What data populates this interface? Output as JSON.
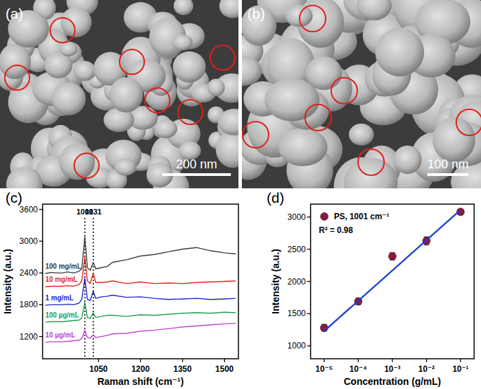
{
  "images": [
    {
      "label": "(a)",
      "scale_bar": "200 nm"
    },
    {
      "label": "(b)",
      "scale_bar": "100 nm"
    }
  ],
  "chart_data": [
    {
      "type": "line",
      "title": "(c)",
      "x_label": "Raman shift (cm⁻¹)",
      "y_label": "Intensity (a.u.)",
      "x": [
        860,
        880,
        900,
        920,
        940,
        960,
        980,
        990,
        1001,
        1010,
        1020,
        1031,
        1040,
        1060,
        1080,
        1100,
        1150,
        1200,
        1250,
        1300,
        1350,
        1400,
        1450,
        1500,
        1540
      ],
      "xlim": [
        850,
        1550
      ],
      "xticks": [
        1050,
        1200,
        1350,
        1500
      ],
      "ylim": [
        780,
        3700
      ],
      "yticks": [
        1200,
        1800,
        2400,
        3000,
        3600
      ],
      "series": [
        {
          "name": "100 mg/mL",
          "color": "#3a3a3a",
          "values": [
            2390,
            2410,
            2400,
            2400,
            2420,
            2400,
            2430,
            2480,
            3080,
            2500,
            2450,
            2600,
            2480,
            2500,
            2520,
            2600,
            2650,
            2720,
            2750,
            2800,
            2850,
            2880,
            2820,
            2780,
            2760
          ]
        },
        {
          "name": "10 mg/mL",
          "color": "#e8231c",
          "values": [
            2140,
            2150,
            2150,
            2150,
            2160,
            2150,
            2180,
            2250,
            2700,
            2250,
            2200,
            2400,
            2220,
            2220,
            2230,
            2250,
            2200,
            2230,
            2200,
            2210,
            2200,
            2220,
            2230,
            2240,
            2250
          ]
        },
        {
          "name": "1 mg/mL",
          "color": "#2020d8",
          "values": [
            1790,
            1800,
            1800,
            1800,
            1810,
            1800,
            1830,
            1900,
            2300,
            1900,
            1880,
            2050,
            1920,
            1950,
            1960,
            1980,
            1940,
            1950,
            1920,
            1900,
            1910,
            1920,
            1900,
            1910,
            1920
          ]
        },
        {
          "name": "100 µg/mL",
          "color": "#1f9e4a",
          "values": [
            1470,
            1480,
            1480,
            1480,
            1490,
            1500,
            1510,
            1550,
            1850,
            1560,
            1540,
            1650,
            1560,
            1580,
            1600,
            1600,
            1580,
            1610,
            1600,
            1620,
            1640,
            1650,
            1640,
            1660,
            1650
          ]
        },
        {
          "name": "10 µg/mL",
          "color": "#c040d0",
          "values": [
            1090,
            1100,
            1100,
            1100,
            1110,
            1120,
            1130,
            1160,
            1320,
            1180,
            1170,
            1230,
            1180,
            1200,
            1220,
            1250,
            1260,
            1300,
            1320,
            1350,
            1380,
            1400,
            1420,
            1440,
            1450
          ]
        }
      ],
      "annotations": [
        {
          "text": "1001",
          "x": 1001
        },
        {
          "text": "1031",
          "x": 1031
        }
      ]
    },
    {
      "type": "scatter",
      "title": "(d)",
      "x_label": "Concentration (g/mL)",
      "y_label": "Intensity (a.u.)",
      "log": "x",
      "legend": "upper left",
      "xlim": [
        4e-06,
        0.25
      ],
      "xticks": [
        {
          "value": 1e-05,
          "label": "10⁻⁵"
        },
        {
          "value": 0.0001,
          "label": "10⁻⁴"
        },
        {
          "value": 0.001,
          "label": "10⁻³"
        },
        {
          "value": 0.01,
          "label": "10⁻²"
        },
        {
          "value": 0.1,
          "label": "10⁻¹"
        }
      ],
      "ylim": [
        800,
        3200
      ],
      "yticks": [
        1000,
        1500,
        2000,
        2500,
        3000
      ],
      "series": [
        {
          "name": "PS, 1001 cm⁻¹",
          "color": "#8b1a3a",
          "marker": "circle",
          "x": [
            1e-05,
            0.0001,
            0.001,
            0.01,
            0.1
          ],
          "values": [
            1280,
            1690,
            2390,
            2630,
            3080
          ],
          "errors": [
            50,
            50,
            55,
            60,
            40
          ]
        },
        {
          "type": "line",
          "color": "#1a3fd6",
          "x": [
            1e-05,
            0.1
          ],
          "values": [
            1230,
            3110
          ]
        }
      ],
      "annotations": [
        {
          "text": "R² = 0.98"
        }
      ]
    }
  ]
}
